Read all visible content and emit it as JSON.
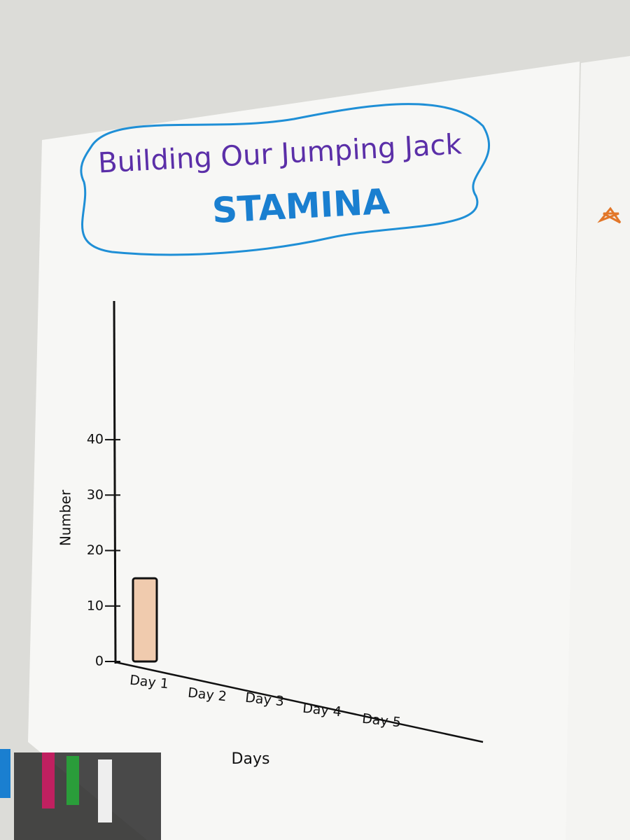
{
  "chart_data": {
    "type": "bar",
    "title": "Building Our Jumping Jack",
    "title_highlight": "STAMINA",
    "x_label": "Days",
    "y_label": "Number",
    "categories": [
      "Day 1",
      "Day 2",
      "Day 3",
      "Day 4",
      "Day 5"
    ],
    "values": [
      15,
      null,
      null,
      null,
      null
    ],
    "color": "#e2772a",
    "ylim": [
      0,
      65
    ],
    "yticks": [
      0,
      10,
      20,
      30,
      40
    ],
    "grid": false
  }
}
